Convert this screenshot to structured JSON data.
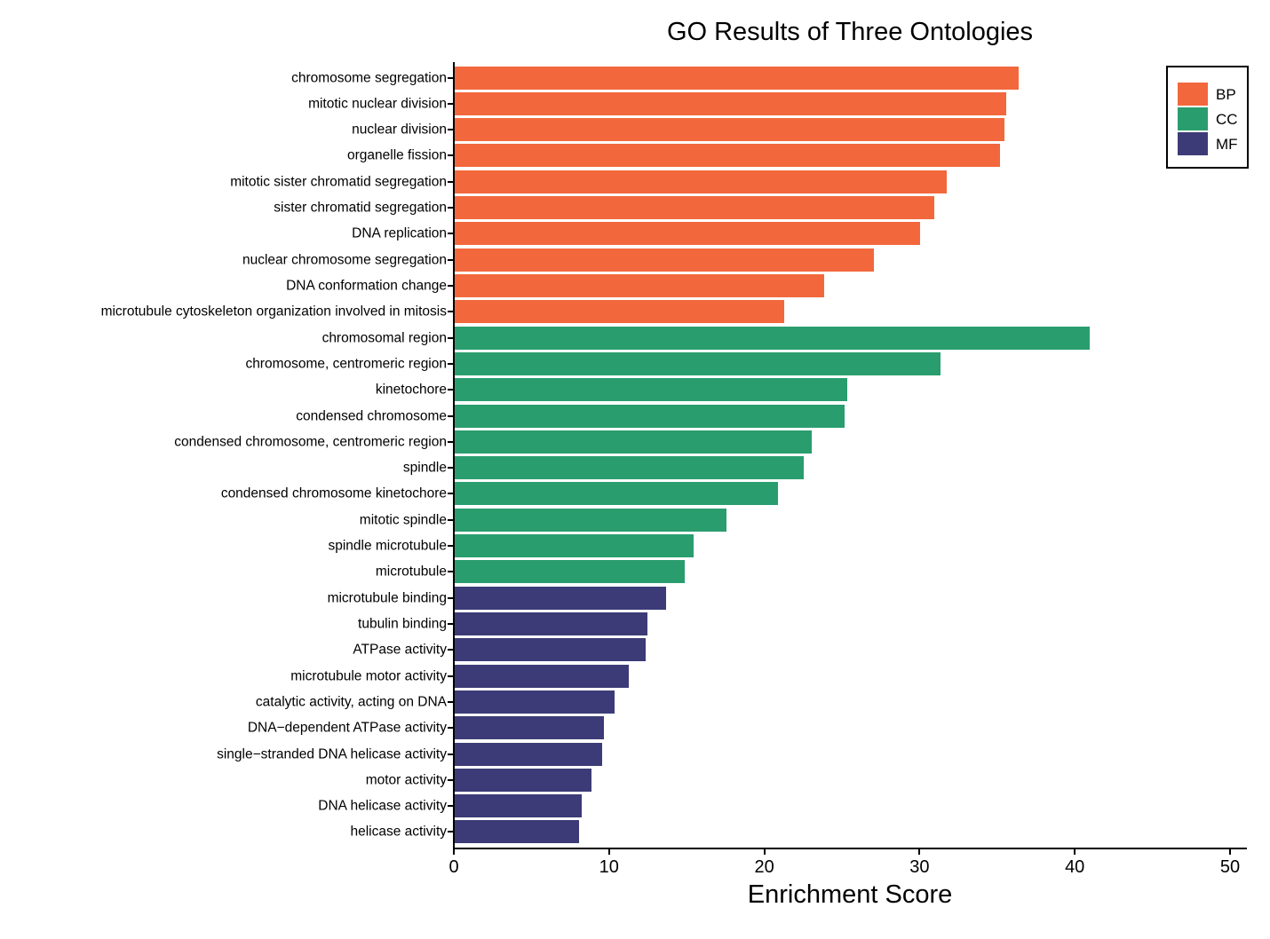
{
  "title": "GO Results of Three Ontologies",
  "chart_data": {
    "type": "bar",
    "orientation": "horizontal",
    "title": "GO Results of Three Ontologies",
    "xlabel": "Enrichment Score",
    "ylabel": "",
    "xlim": [
      0,
      51
    ],
    "xticks": [
      0,
      10,
      20,
      30,
      40,
      50
    ],
    "grid": false,
    "bar_width_fraction": 0.9,
    "legend": {
      "position": "top-right",
      "entries": [
        {
          "label": "BP",
          "color": "#F2683C"
        },
        {
          "label": "CC",
          "color": "#2A9D6F"
        },
        {
          "label": "MF",
          "color": "#3C3B77"
        }
      ]
    },
    "bars": [
      {
        "category": "chromosome segregation",
        "group": "BP",
        "value": 36.3
      },
      {
        "category": "mitotic nuclear division",
        "group": "BP",
        "value": 35.5
      },
      {
        "category": "nuclear division",
        "group": "BP",
        "value": 35.4
      },
      {
        "category": "organelle fission",
        "group": "BP",
        "value": 35.1
      },
      {
        "category": "mitotic sister chromatid segregation",
        "group": "BP",
        "value": 31.7
      },
      {
        "category": "sister chromatid segregation",
        "group": "BP",
        "value": 30.9
      },
      {
        "category": "DNA replication",
        "group": "BP",
        "value": 30.0
      },
      {
        "category": "nuclear chromosome segregation",
        "group": "BP",
        "value": 27.0
      },
      {
        "category": "DNA conformation change",
        "group": "BP",
        "value": 23.8
      },
      {
        "category": "microtubule cytoskeleton organization involved in mitosis",
        "group": "BP",
        "value": 21.2
      },
      {
        "category": "chromosomal region",
        "group": "CC",
        "value": 40.9
      },
      {
        "category": "chromosome, centromeric region",
        "group": "CC",
        "value": 31.3
      },
      {
        "category": "kinetochore",
        "group": "CC",
        "value": 25.3
      },
      {
        "category": "condensed chromosome",
        "group": "CC",
        "value": 25.1
      },
      {
        "category": "condensed chromosome, centromeric region",
        "group": "CC",
        "value": 23.0
      },
      {
        "category": "spindle",
        "group": "CC",
        "value": 22.5
      },
      {
        "category": "condensed chromosome kinetochore",
        "group": "CC",
        "value": 20.8
      },
      {
        "category": "mitotic spindle",
        "group": "CC",
        "value": 17.5
      },
      {
        "category": "spindle microtubule",
        "group": "CC",
        "value": 15.4
      },
      {
        "category": "microtubule",
        "group": "CC",
        "value": 14.8
      },
      {
        "category": "microtubule binding",
        "group": "MF",
        "value": 13.6
      },
      {
        "category": "tubulin binding",
        "group": "MF",
        "value": 12.4
      },
      {
        "category": "ATPase activity",
        "group": "MF",
        "value": 12.3
      },
      {
        "category": "microtubule motor activity",
        "group": "MF",
        "value": 11.2
      },
      {
        "category": "catalytic activity, acting on DNA",
        "group": "MF",
        "value": 10.3
      },
      {
        "category": "DNA−dependent ATPase activity",
        "group": "MF",
        "value": 9.6
      },
      {
        "category": "single−stranded DNA helicase activity",
        "group": "MF",
        "value": 9.5
      },
      {
        "category": "motor activity",
        "group": "MF",
        "value": 8.8
      },
      {
        "category": "DNA helicase activity",
        "group": "MF",
        "value": 8.2
      },
      {
        "category": "helicase activity",
        "group": "MF",
        "value": 8.0
      }
    ]
  }
}
